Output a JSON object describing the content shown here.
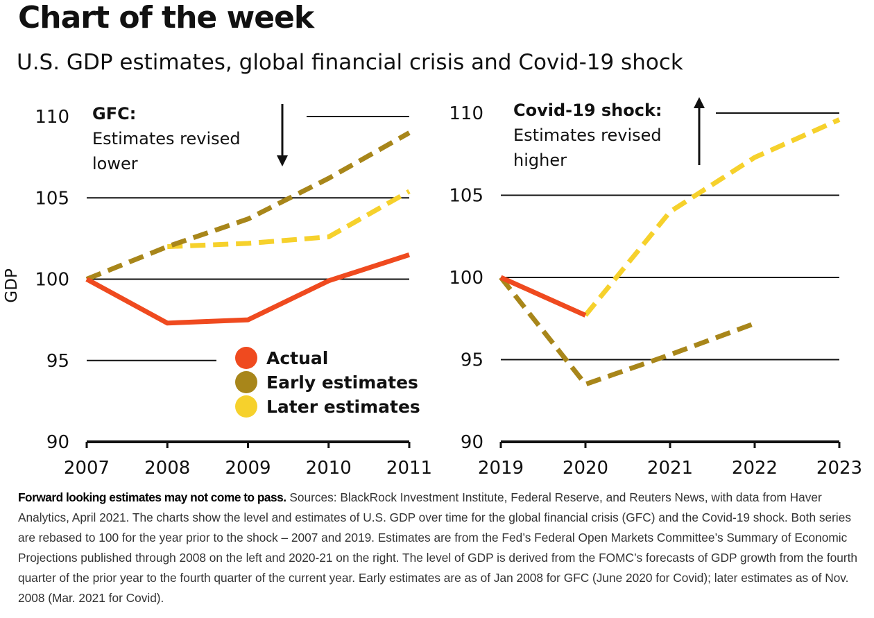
{
  "header": {
    "title": "Chart of the week",
    "subtitle": "U.S. GDP estimates, global financial crisis and Covid-19 shock"
  },
  "colors": {
    "actual": "#EF4A1F",
    "early": "#A8861A",
    "later": "#F6D12C",
    "gridline": "#111111"
  },
  "legend": {
    "actual": "Actual",
    "early": "Early estimates",
    "later": "Later estimates"
  },
  "chart_data": [
    {
      "type": "line",
      "title": "GFC",
      "ylabel": "GDP",
      "ylim": [
        90,
        110
      ],
      "yticks": [
        90,
        95,
        100,
        105,
        110
      ],
      "x": [
        2007,
        2008,
        2009,
        2010,
        2011
      ],
      "annotation": {
        "heading": "GFC:",
        "lines": [
          "Estimates revised",
          "lower"
        ]
      },
      "series": [
        {
          "name": "Actual",
          "key": "actual",
          "x": [
            2007,
            2008,
            2009,
            2010,
            2011
          ],
          "values": [
            100,
            97.3,
            97.5,
            99.9,
            101.5
          ]
        },
        {
          "name": "Early estimates",
          "key": "early",
          "x": [
            2007,
            2008,
            2009,
            2010,
            2011
          ],
          "values": [
            100,
            102,
            103.7,
            106.2,
            109
          ]
        },
        {
          "name": "Later estimates",
          "key": "later",
          "x": [
            2008,
            2009,
            2010,
            2011
          ],
          "values": [
            102,
            102.2,
            102.6,
            105.4
          ]
        }
      ]
    },
    {
      "type": "line",
      "title": "Covid-19 shock",
      "ylim": [
        90,
        110
      ],
      "yticks": [
        90,
        95,
        100,
        105,
        110
      ],
      "x": [
        2019,
        2020,
        2021,
        2022,
        2023
      ],
      "annotation": {
        "heading": "Covid-19 shock",
        "heading_suffix": ":",
        "lines": [
          "Estimates revised",
          "higher"
        ]
      },
      "series": [
        {
          "name": "Actual",
          "key": "actual",
          "x": [
            2019,
            2020
          ],
          "values": [
            100,
            97.7
          ]
        },
        {
          "name": "Early estimates",
          "key": "early",
          "x": [
            2019,
            2020,
            2021,
            2022
          ],
          "values": [
            100,
            93.5,
            95.3,
            97.2
          ]
        },
        {
          "name": "Later estimates",
          "key": "later",
          "x": [
            2020,
            2021,
            2022,
            2023
          ],
          "values": [
            97.7,
            104,
            107.3,
            109.6
          ]
        }
      ]
    }
  ],
  "footnote": {
    "lead": "Forward looking estimates may not come to pass.",
    "text": " Sources: BlackRock Investment Institute, Federal Reserve, and Reuters News, with data from Haver Analytics, April 2021. The charts show the level and estimates of U.S. GDP over time for the global financial crisis (GFC) and the Covid-19 shock. Both series are rebased to 100 for the year prior to the shock – 2007 and 2019. Estimates are from the Fed’s Federal Open Markets Committee’s Summary of Economic Projections published through 2008 on the left and 2020-21 on the right. The level of GDP is derived from the FOMC’s forecasts of GDP growth from the fourth quarter of the prior year to the fourth quarter of the current year. Early estimates are as of Jan 2008 for GFC (June 2020 for Covid); later estimates as of Nov. 2008 (Mar. 2021 for Covid)."
  }
}
